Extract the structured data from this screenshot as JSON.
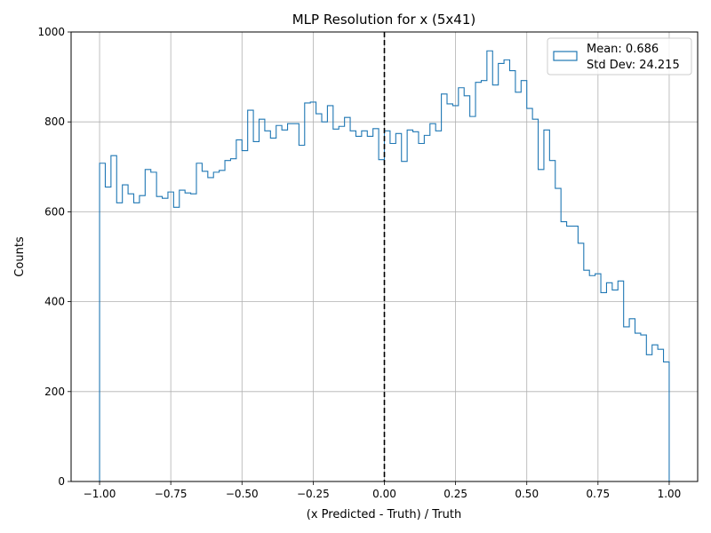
{
  "chart_data": {
    "type": "histogram",
    "title": "MLP Resolution for x (5x41)",
    "xlabel": "(x Predicted - Truth) / Truth",
    "ylabel": "Counts",
    "xlim": [
      -1.1,
      1.1
    ],
    "ylim": [
      0,
      1000
    ],
    "xticks": [
      -1.0,
      -0.75,
      -0.5,
      -0.25,
      0.0,
      0.25,
      0.5,
      0.75,
      1.0
    ],
    "xtick_labels": [
      "−1.00",
      "−0.75",
      "−0.50",
      "−0.25",
      "0.00",
      "0.25",
      "0.50",
      "0.75",
      "1.00"
    ],
    "yticks": [
      0,
      200,
      400,
      600,
      800,
      1000
    ],
    "ytick_labels": [
      "0",
      "200",
      "400",
      "600",
      "800",
      "1000"
    ],
    "grid": true,
    "bin_range": [
      -1.0,
      1.0
    ],
    "bins": 100,
    "color": "#1f77b4",
    "counts": [
      708,
      655,
      725,
      620,
      660,
      640,
      620,
      636,
      694,
      688,
      634,
      630,
      644,
      610,
      648,
      642,
      640,
      708,
      690,
      676,
      688,
      692,
      714,
      718,
      760,
      736,
      826,
      756,
      806,
      780,
      764,
      792,
      782,
      796,
      796,
      748,
      842,
      844,
      818,
      800,
      836,
      784,
      790,
      810,
      780,
      768,
      780,
      768,
      785,
      716,
      780,
      752,
      774,
      712,
      782,
      778,
      752,
      770,
      796,
      780,
      862,
      840,
      836,
      876,
      858,
      812,
      888,
      892,
      958,
      882,
      930,
      938,
      914,
      866,
      892,
      830,
      806,
      694,
      782,
      714,
      652,
      578,
      568,
      568,
      530,
      470,
      458,
      462,
      420,
      442,
      426,
      446,
      344,
      362,
      330,
      326,
      282,
      304,
      294,
      266
    ],
    "vline": {
      "x": 0.0,
      "color": "#000000",
      "style": "dashed"
    },
    "legend": {
      "placement": "top-right",
      "lines": [
        "Mean: 0.686",
        "Std Dev: 24.215"
      ]
    }
  }
}
